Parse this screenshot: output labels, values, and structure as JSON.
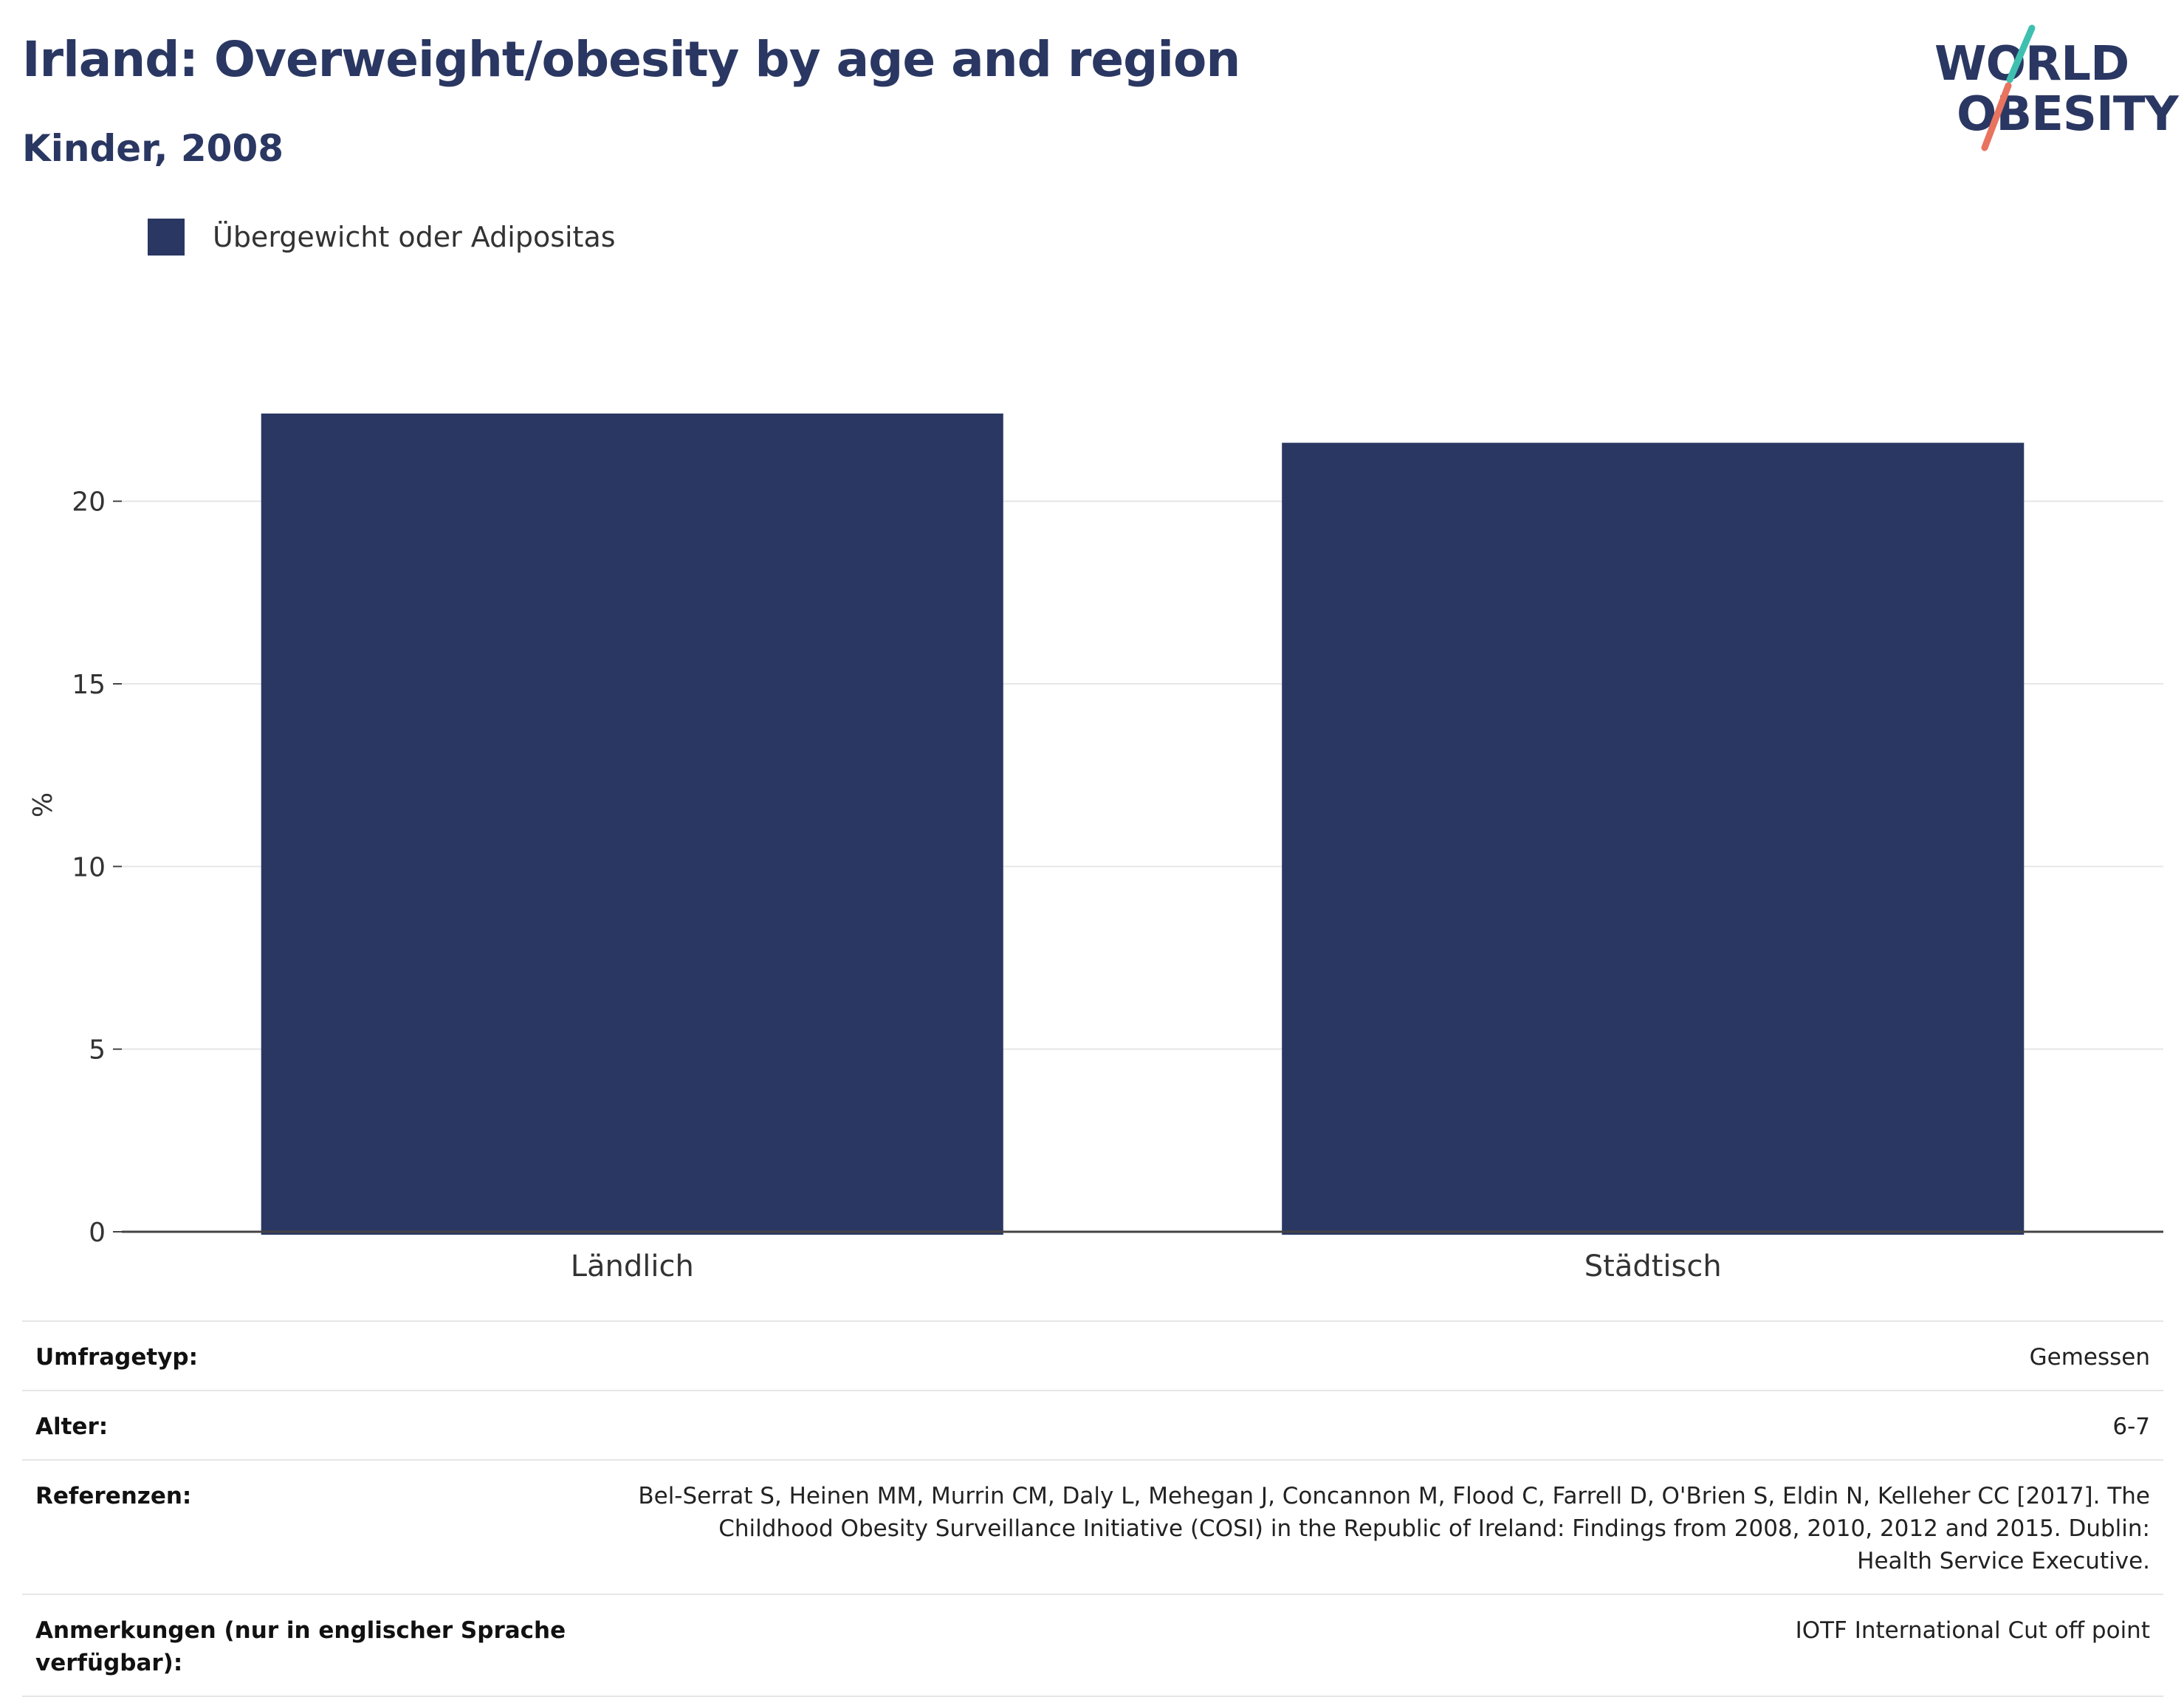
{
  "header": {
    "title": "Irland: Overweight/obesity by age and region",
    "subtitle": "Kinder, 2008"
  },
  "logo": {
    "line1": "WORLD",
    "line2": "OBESITY",
    "accent_teal": "#3fbfb0",
    "accent_coral": "#e8735f"
  },
  "colors": {
    "bar": "#2a3762",
    "grid": "#e6e6e6",
    "axis": "#444444"
  },
  "chart_data": {
    "type": "bar",
    "categories": [
      "Ländlich",
      "Städtisch"
    ],
    "series": [
      {
        "name": "Übergewicht oder Adipositas",
        "values": [
          22.4,
          21.6
        ]
      }
    ],
    "ylabel": "%",
    "yticks": [
      0,
      5,
      10,
      15,
      20
    ],
    "ylim": [
      0,
      22.4
    ],
    "grid": true,
    "legend_position": "top-left"
  },
  "info": [
    {
      "label": "Umfragetyp:",
      "value": "Gemessen"
    },
    {
      "label": "Alter:",
      "value": "6-7"
    },
    {
      "label": "Referenzen:",
      "value": "Bel-Serrat S, Heinen MM, Murrin CM, Daly L, Mehegan J, Concannon M, Flood C, Farrell D, O'Brien S, Eldin N, Kelleher CC [2017]. The Childhood Obesity Surveillance Initiative (COSI) in the Republic of Ireland: Findings from 2008, 2010, 2012 and 2015. Dublin: Health Service Executive."
    },
    {
      "label": "Anmerkungen (nur in englischer Sprache verfügbar):",
      "value": "IOTF International Cut off point"
    }
  ]
}
